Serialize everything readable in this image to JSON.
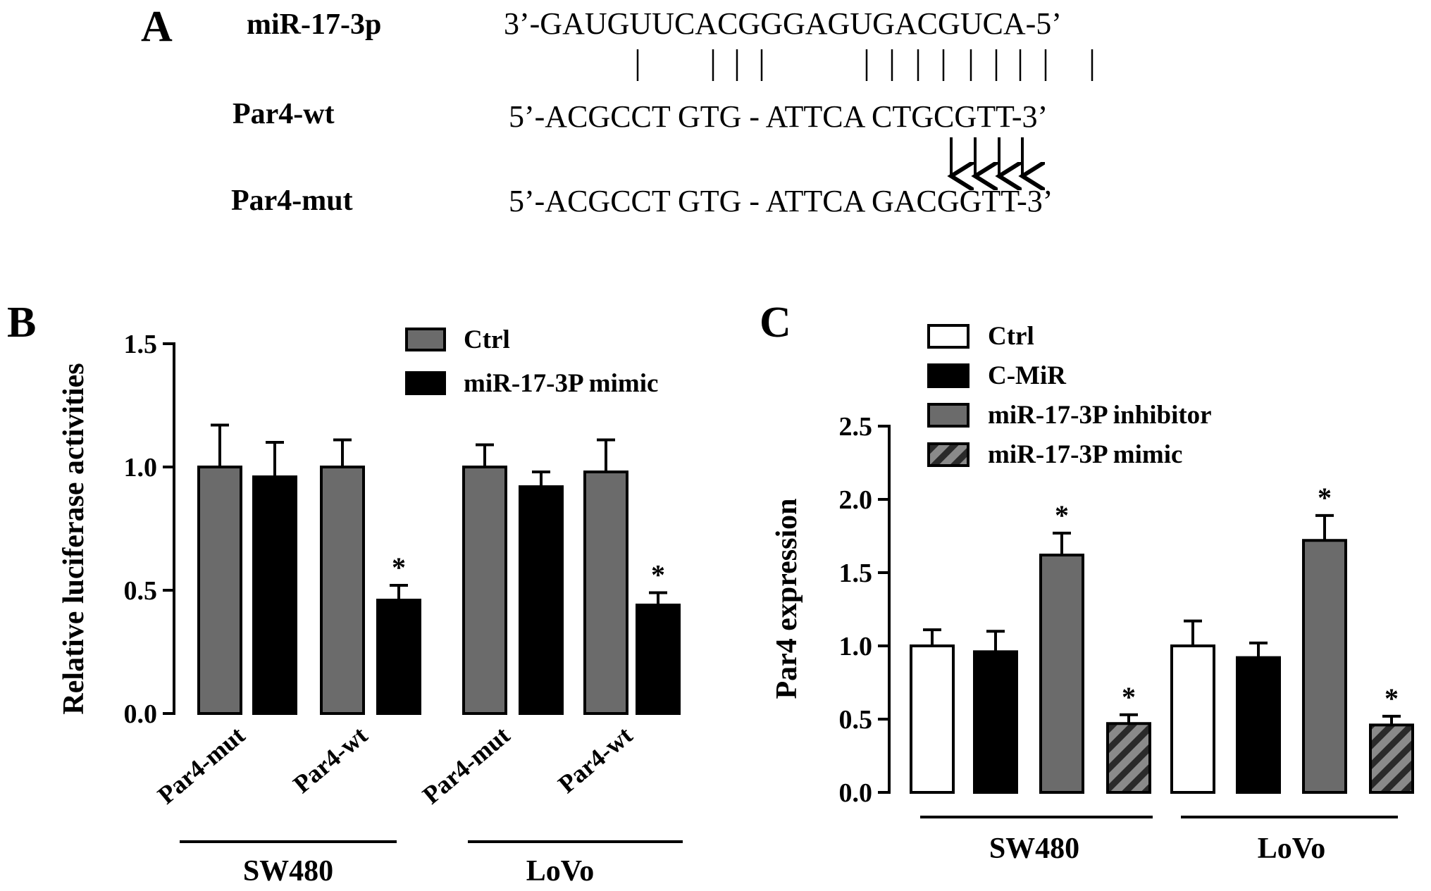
{
  "panel_a": {
    "letter": "A",
    "rows": [
      {
        "label": "miR-17-3p",
        "seq": "3’-GAUGUUCACGGGAGUGACGUCA-5’"
      },
      {
        "label": "Par4-wt",
        "seq": "5’-ACGCCT GTG - ATTCA CTGCGTT-3’"
      },
      {
        "label": "Par4-mut",
        "seq": "5’-ACGCCT GTG - ATTCA GACGGTT-3’"
      }
    ]
  },
  "colors": {
    "ctrl_gray": "#6b6b6b",
    "black": "#000000",
    "white": "#ffffff"
  },
  "chart_data": [
    {
      "panel": "B",
      "type": "bar",
      "ylabel": "Relative luciferase activities",
      "ylim": [
        0,
        1.5
      ],
      "yticks": [
        "0.0",
        "0.5",
        "1.0",
        "1.5"
      ],
      "legend": [
        "Ctrl",
        "miR-17-3P mimic"
      ],
      "groups": [
        {
          "name": "SW480",
          "categories": [
            "Par4-mut",
            "Par4-wt"
          ]
        },
        {
          "name": "LoVo",
          "categories": [
            "Par4-mut",
            "Par4-wt"
          ]
        }
      ],
      "series": [
        {
          "name": "Ctrl",
          "values": [
            1.0,
            1.0,
            1.0,
            0.98
          ],
          "errors": [
            0.17,
            0.11,
            0.09,
            0.13
          ]
        },
        {
          "name": "miR-17-3P mimic",
          "values": [
            0.96,
            0.46,
            0.92,
            0.44
          ],
          "errors": [
            0.14,
            0.06,
            0.06,
            0.05
          ]
        }
      ],
      "significance": "*"
    },
    {
      "panel": "C",
      "type": "bar",
      "ylabel": "Par4 expression",
      "ylim": [
        0,
        2.5
      ],
      "yticks": [
        "0.0",
        "0.5",
        "1.0",
        "1.5",
        "2.0",
        "2.5"
      ],
      "legend": [
        "Ctrl",
        "C-MiR",
        "miR-17-3P inhibitor",
        "miR-17-3P mimic"
      ],
      "categories": [
        "SW480",
        "LoVo"
      ],
      "series": [
        {
          "name": "Ctrl",
          "values": [
            1.0,
            1.0
          ],
          "errors": [
            0.11,
            0.17
          ]
        },
        {
          "name": "C-MiR",
          "values": [
            0.96,
            0.92
          ],
          "errors": [
            0.14,
            0.1
          ]
        },
        {
          "name": "miR-17-3P inhibitor",
          "values": [
            1.62,
            1.72
          ],
          "errors": [
            0.15,
            0.17
          ]
        },
        {
          "name": "miR-17-3P mimic",
          "values": [
            0.47,
            0.46
          ],
          "errors": [
            0.06,
            0.06
          ]
        }
      ],
      "significance": "*"
    }
  ]
}
